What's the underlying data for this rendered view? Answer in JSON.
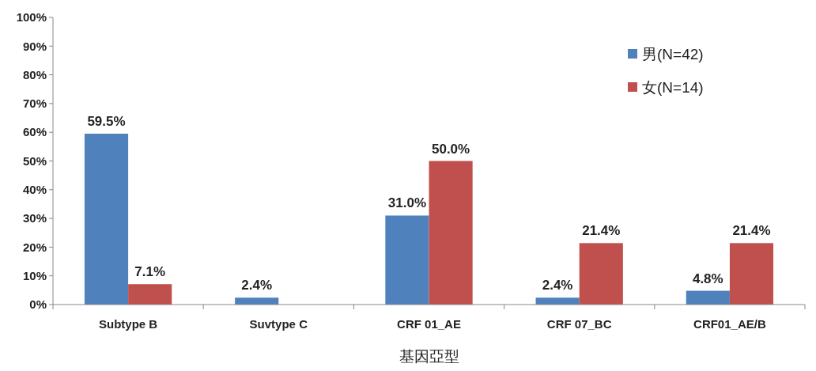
{
  "chart_data": {
    "type": "bar",
    "xlabel": "基因亞型",
    "categories": [
      "Subtype B",
      "Suvtype C",
      "CRF 01_AE",
      "CRF 07_BC",
      "CRF01_AE/B"
    ],
    "series": [
      {
        "name": "男(N=42)",
        "color": "#4f81bd",
        "values": [
          59.5,
          2.4,
          31.0,
          2.4,
          4.8
        ],
        "value_labels": [
          "59.5%",
          "2.4%",
          "31.0%",
          "2.4%",
          "4.8%"
        ]
      },
      {
        "name": "女(N=14)",
        "color": "#c0504d",
        "values": [
          7.1,
          null,
          50.0,
          21.4,
          21.4
        ],
        "value_labels": [
          "7.1%",
          null,
          "50.0%",
          "21.4%",
          "21.4%"
        ]
      }
    ],
    "ylim": [
      0,
      100
    ],
    "yticks": [
      {
        "value": 0,
        "label": "0%"
      },
      {
        "value": 10,
        "label": "10%"
      },
      {
        "value": 20,
        "label": "20%"
      },
      {
        "value": 30,
        "label": "30%"
      },
      {
        "value": 40,
        "label": "40%"
      },
      {
        "value": 50,
        "label": "50%"
      },
      {
        "value": 60,
        "label": "60%"
      },
      {
        "value": 70,
        "label": "70%"
      },
      {
        "value": 80,
        "label": "80%"
      },
      {
        "value": 90,
        "label": "90%"
      },
      {
        "value": 100,
        "label": "100%"
      }
    ],
    "legend": "top right",
    "grid": false
  }
}
